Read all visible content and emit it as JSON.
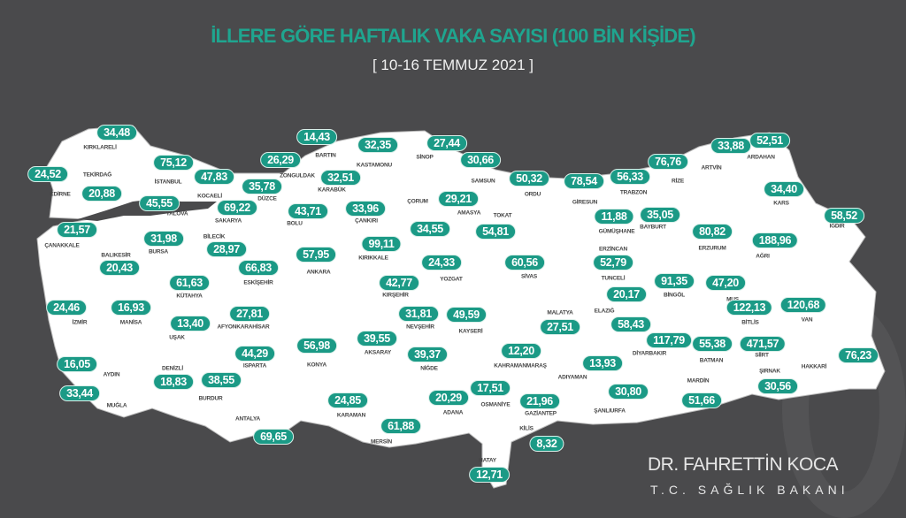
{
  "header": {
    "title": "İLLERE GÖRE HAFTALIK VAKA SAYISI (100 BİN KİŞİDE)",
    "subtitle": "[ 10-16 TEMMUZ 2021 ]"
  },
  "footer": {
    "author": "DR. FAHRETTİN KOCA",
    "ministry": "T.C. SAĞLIK BAKANI"
  },
  "colors": {
    "background": "#4a4a4c",
    "accent": "#1b9a86",
    "land": "#ffffff"
  },
  "provinces": [
    {
      "name": "KIRKLARELİ",
      "value": "34,48"
    },
    {
      "name": "EDİRNE",
      "value": "24,52"
    },
    {
      "name": "TEKİRDAĞ",
      "value": "20,88"
    },
    {
      "name": "İSTANBUL",
      "value": "75,12"
    },
    {
      "name": "KOCAELİ",
      "value": "47,83"
    },
    {
      "name": "YALOVA",
      "value": "45,55"
    },
    {
      "name": "DÜZCE",
      "value": "35,78"
    },
    {
      "name": "SAKARYA",
      "value": "69,22"
    },
    {
      "name": "ZONGULDAK",
      "value": "26,29"
    },
    {
      "name": "BARTIN",
      "value": "14,43"
    },
    {
      "name": "KASTAMONU",
      "value": "32,35"
    },
    {
      "name": "KARABÜK",
      "value": "32,51"
    },
    {
      "name": "SİNOP",
      "value": "27,44"
    },
    {
      "name": "BOLU",
      "value": "43,71"
    },
    {
      "name": "ÇANKIRI",
      "value": "33,96"
    },
    {
      "name": "ÇORUM",
      "value": "34,55"
    },
    {
      "name": "SAMSUN",
      "value": "30,66"
    },
    {
      "name": "AMASYA",
      "value": "29,21"
    },
    {
      "name": "ORDU",
      "value": "50,32"
    },
    {
      "name": "GİRESUN",
      "value": "78,54"
    },
    {
      "name": "TRABZON",
      "value": "56,33"
    },
    {
      "name": "RİZE",
      "value": "76,76"
    },
    {
      "name": "ARTVİN",
      "value": "33,88"
    },
    {
      "name": "ARDAHAN",
      "value": "52,51"
    },
    {
      "name": "KARS",
      "value": "34,40"
    },
    {
      "name": "IĞDIR",
      "value": "58,52"
    },
    {
      "name": "AĞRI",
      "value": "188,96"
    },
    {
      "name": "ERZURUM",
      "value": "80,82"
    },
    {
      "name": "BAYBURT",
      "value": "35,05"
    },
    {
      "name": "GÜMÜŞHANE",
      "value": "11,88"
    },
    {
      "name": "ERZİNCAN",
      "value": "52,79"
    },
    {
      "name": "TUNCELİ",
      "value": "20,17"
    },
    {
      "name": "BİNGÖL",
      "value": "91,35"
    },
    {
      "name": "MUŞ",
      "value": "47,20"
    },
    {
      "name": "TOKAT",
      "value": "54,81"
    },
    {
      "name": "SİVAS",
      "value": "60,56"
    },
    {
      "name": "YOZGAT",
      "value": "24,33"
    },
    {
      "name": "KIRIKKALE",
      "value": "99,11"
    },
    {
      "name": "ANKARA",
      "value": "57,95"
    },
    {
      "name": "BİLECİK",
      "value": "28,97"
    },
    {
      "name": "BURSA",
      "value": "31,98"
    },
    {
      "name": "BALIKESİR",
      "value": "20,43"
    },
    {
      "name": "ÇANAKKALE",
      "value": "21,57"
    },
    {
      "name": "ESKİŞEHİR",
      "value": "66,83"
    },
    {
      "name": "KÜTAHYA",
      "value": "61,63"
    },
    {
      "name": "KIRŞEHİR",
      "value": "42,77"
    },
    {
      "name": "İZMİR",
      "value": "24,46"
    },
    {
      "name": "MANİSA",
      "value": "16,93"
    },
    {
      "name": "UŞAK",
      "value": "13,40"
    },
    {
      "name": "AFYONKARAHİSAR",
      "value": "27,81"
    },
    {
      "name": "NEVŞEHİR",
      "value": "31,81"
    },
    {
      "name": "KAYSERİ",
      "value": "49,59"
    },
    {
      "name": "AKSARAY",
      "value": "39,55"
    },
    {
      "name": "NİĞDE",
      "value": "39,37"
    },
    {
      "name": "KONYA",
      "value": "56,98"
    },
    {
      "name": "ISPARTA",
      "value": "44,29"
    },
    {
      "name": "AYDIN",
      "value": "16,05"
    },
    {
      "name": "DENİZLİ",
      "value": "18,83"
    },
    {
      "name": "BURDUR",
      "value": "38,55"
    },
    {
      "name": "MUĞLA",
      "value": "33,44"
    },
    {
      "name": "ANTALYA",
      "value": "69,65"
    },
    {
      "name": "KARAMAN",
      "value": "24,85"
    },
    {
      "name": "MERSİN",
      "value": "61,88"
    },
    {
      "name": "ADANA",
      "value": "20,29"
    },
    {
      "name": "OSMANİYE",
      "value": "17,51"
    },
    {
      "name": "KAHRAMANMARAŞ",
      "value": "12,20"
    },
    {
      "name": "GAZİANTEP",
      "value": "21,96"
    },
    {
      "name": "KİLİS",
      "value": "8,32"
    },
    {
      "name": "HATAY",
      "value": "12,71"
    },
    {
      "name": "MALATYA",
      "value": "27,51"
    },
    {
      "name": "ELAZIĞ",
      "value": "58,43"
    },
    {
      "name": "ADIYAMAN",
      "value": "13,93"
    },
    {
      "name": "ŞANLIURFA",
      "value": "30,80"
    },
    {
      "name": "DİYARBAKIR",
      "value": "117,79"
    },
    {
      "name": "BATMAN",
      "value": "55,38"
    },
    {
      "name": "MARDİN",
      "value": "51,66"
    },
    {
      "name": "SİİRT",
      "value": "471,57"
    },
    {
      "name": "BİTLİS",
      "value": "122,13"
    },
    {
      "name": "VAN",
      "value": "120,68"
    },
    {
      "name": "ŞIRNAK",
      "value": "30,56"
    },
    {
      "name": "HAKKARİ",
      "value": "76,23"
    }
  ]
}
